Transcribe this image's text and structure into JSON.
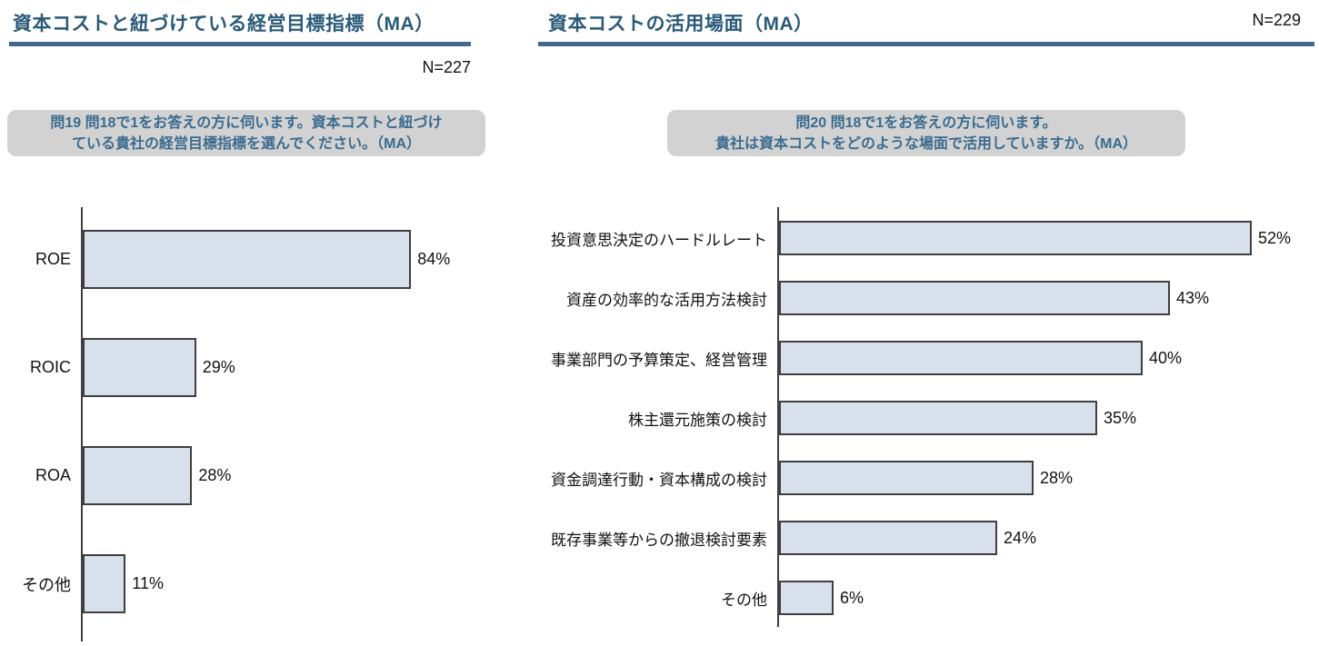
{
  "colors": {
    "title_text": "#2A5A78",
    "title_rule": "#44688C",
    "question_text": "#3A6B8F",
    "question_bg": "#D2D2D2",
    "bar_fill": "#D8E1EB",
    "bar_border": "#3f3f3f",
    "axis": "#3f3f3f"
  },
  "chart_data": [
    {
      "type": "bar",
      "orientation": "horizontal",
      "title": "資本コストと紐づけている経営目標指標（MA）",
      "n_label": "N=227",
      "question_lines": [
        "問19 問18で1をお答えの方に伺います。資本コストと紐づけ",
        "ている貴社の経営目標指標を選んでください。（MA）"
      ],
      "categories": [
        "ROE",
        "ROIC",
        "ROA",
        "その他"
      ],
      "values": [
        84,
        29,
        28,
        11
      ],
      "value_labels": [
        "84%",
        "29%",
        "28%",
        "11%"
      ],
      "unit": "%",
      "xlim": [
        0,
        100
      ],
      "grid": false,
      "legend": false
    },
    {
      "type": "bar",
      "orientation": "horizontal",
      "title": "資本コストの活用場面（MA）",
      "n_label": "N=229",
      "question_lines": [
        "問20 問18で1をお答えの方に伺います。",
        "貴社は資本コストをどのような場面で活用していますか。（MA）"
      ],
      "categories": [
        "投資意思決定のハードルレート",
        "資産の効率的な活用方法検討",
        "事業部門の予算策定、経営管理",
        "株主還元施策の検討",
        "資金調達行動・資本構成の検討",
        "既存事業等からの撤退検討要素",
        "その他"
      ],
      "values": [
        52,
        43,
        40,
        35,
        28,
        24,
        6
      ],
      "value_labels": [
        "52%",
        "43%",
        "40%",
        "35%",
        "28%",
        "24%",
        "6%"
      ],
      "unit": "%",
      "xlim": [
        0,
        60
      ],
      "grid": false,
      "legend": false
    }
  ]
}
